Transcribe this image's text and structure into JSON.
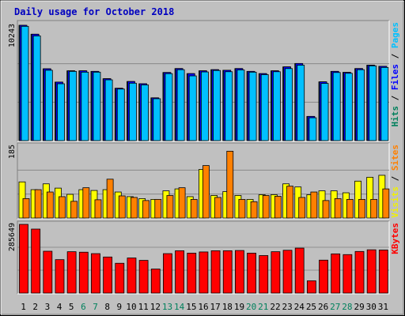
{
  "chart_data": {
    "type": "bar",
    "title": "Daily usage for October 2018",
    "categories": [
      "1",
      "2",
      "3",
      "4",
      "5",
      "6",
      "7",
      "8",
      "9",
      "10",
      "11",
      "12",
      "13",
      "14",
      "15",
      "16",
      "17",
      "18",
      "19",
      "20",
      "21",
      "22",
      "23",
      "24",
      "25",
      "26",
      "27",
      "28",
      "29",
      "30",
      "31"
    ],
    "weekend_days": [
      "6",
      "7",
      "13",
      "14",
      "20",
      "21",
      "27",
      "28"
    ],
    "panels": [
      {
        "id": "hits",
        "scale_label": "10243",
        "ylim": [
          0,
          10243
        ],
        "legend": [
          {
            "text": "Hits",
            "color": "#00805c"
          },
          {
            "text": "Files",
            "color": "#0000ff"
          },
          {
            "text": "Pages",
            "color": "#00c0ff"
          }
        ],
        "series": [
          {
            "name": "Hits",
            "color": "#00805c",
            "values": [
              10243,
              9450,
              6380,
              5200,
              6200,
              6200,
              6150,
              5500,
              4650,
              5250,
              5050,
              3800,
              6050,
              6400,
              5950,
              6200,
              6300,
              6250,
              6400,
              6150,
              5950,
              6200,
              6550,
              6850,
              2150,
              5220,
              6150,
              6060,
              6400,
              6700,
              6600
            ]
          },
          {
            "name": "Files",
            "color": "#0000ff",
            "values": [
              10243,
              9450,
              6380,
              5200,
              6200,
              6200,
              6150,
              5500,
              4650,
              5250,
              5050,
              3800,
              6050,
              6400,
              5950,
              6200,
              6300,
              6250,
              6400,
              6150,
              5950,
              6200,
              6550,
              6850,
              2150,
              5220,
              6150,
              6060,
              6400,
              6700,
              6600
            ]
          },
          {
            "name": "Pages",
            "color": "#00c0ff",
            "values": [
              10150,
              9300,
              6250,
              5050,
              6150,
              6080,
              6080,
              5400,
              4580,
              5100,
              4950,
              3720,
              5950,
              6300,
              5750,
              6100,
              6230,
              6120,
              6280,
              6080,
              5860,
              6120,
              6400,
              6700,
              2030,
              5080,
              6050,
              5980,
              6300,
              6640,
              6500
            ]
          }
        ]
      },
      {
        "id": "visits",
        "scale_label": "185",
        "ylim": [
          0,
          185
        ],
        "legend": [
          {
            "text": "Visits",
            "color": "#f0f000"
          },
          {
            "text": "Sites",
            "color": "#ff8000"
          }
        ],
        "series": [
          {
            "name": "Visits",
            "color": "#ffff00",
            "values": [
              93,
              73,
              88,
              77,
              61,
              73,
              71,
              73,
              67,
              55,
              50,
              48,
              70,
              75,
              55,
              125,
              58,
              68,
              58,
              48,
              60,
              60,
              88,
              80,
              60,
              70,
              70,
              65,
              95,
              105,
              110
            ]
          },
          {
            "name": "Sites",
            "color": "#ff8000",
            "values": [
              50,
              73,
              67,
              55,
              43,
              78,
              47,
              100,
              57,
              53,
              45,
              48,
              58,
              78,
              48,
              135,
              53,
              172,
              48,
              42,
              58,
              56,
              82,
              53,
              67,
              45,
              50,
              48,
              48,
              48,
              75
            ]
          }
        ]
      },
      {
        "id": "kbytes",
        "scale_label": "285649",
        "ylim": [
          0,
          285649
        ],
        "legend": [
          {
            "text": "KBytes",
            "color": "#ff0000"
          }
        ],
        "series": [
          {
            "name": "KBytes",
            "color": "#ff0000",
            "values": [
              285649,
              266000,
              174000,
              139000,
              172000,
              170000,
              164000,
              150000,
              124000,
              146000,
              136000,
              100000,
              164000,
              176000,
              166000,
              171000,
              176000,
              176000,
              177000,
              166000,
              156000,
              172000,
              178000,
              187000,
              51000,
              137000,
              163000,
              160000,
              173000,
              180000,
              179000
            ]
          }
        ]
      }
    ]
  }
}
